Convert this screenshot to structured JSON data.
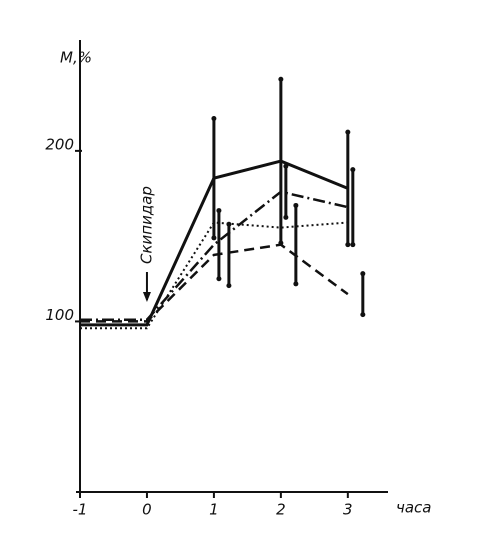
{
  "chart_data": {
    "type": "line",
    "y_label": "М,%",
    "x_label": "часа",
    "annotation": "Скипидар",
    "annotation_x": 0,
    "x": [
      -1,
      0,
      1,
      2,
      3
    ],
    "xlim": [
      -1,
      3.6
    ],
    "xticks": [
      -1,
      0,
      1,
      2,
      3
    ],
    "ylim": [
      0,
      265
    ],
    "yticks": [
      100,
      200
    ],
    "series": [
      {
        "color": "#111111",
        "dash": "solid",
        "width": 3,
        "values": [
          98,
          98,
          184,
          194,
          178
        ],
        "errors": [
          null,
          null,
          35,
          48,
          33
        ]
      },
      {
        "color": "#111111",
        "dash": "dashdot",
        "width": 2.5,
        "values": [
          101,
          101,
          145,
          176,
          167
        ],
        "errors": [
          null,
          null,
          20,
          15,
          22
        ]
      },
      {
        "color": "#111111",
        "dash": "dotted",
        "width": 2,
        "values": [
          96,
          96,
          158,
          155,
          158
        ],
        "errors": [
          null,
          null,
          null,
          null,
          null
        ]
      },
      {
        "color": "#111111",
        "dash": "dashed",
        "width": 2.5,
        "values": [
          100,
          100,
          139,
          145,
          116
        ],
        "errors": [
          null,
          null,
          18,
          23,
          12
        ]
      }
    ]
  }
}
